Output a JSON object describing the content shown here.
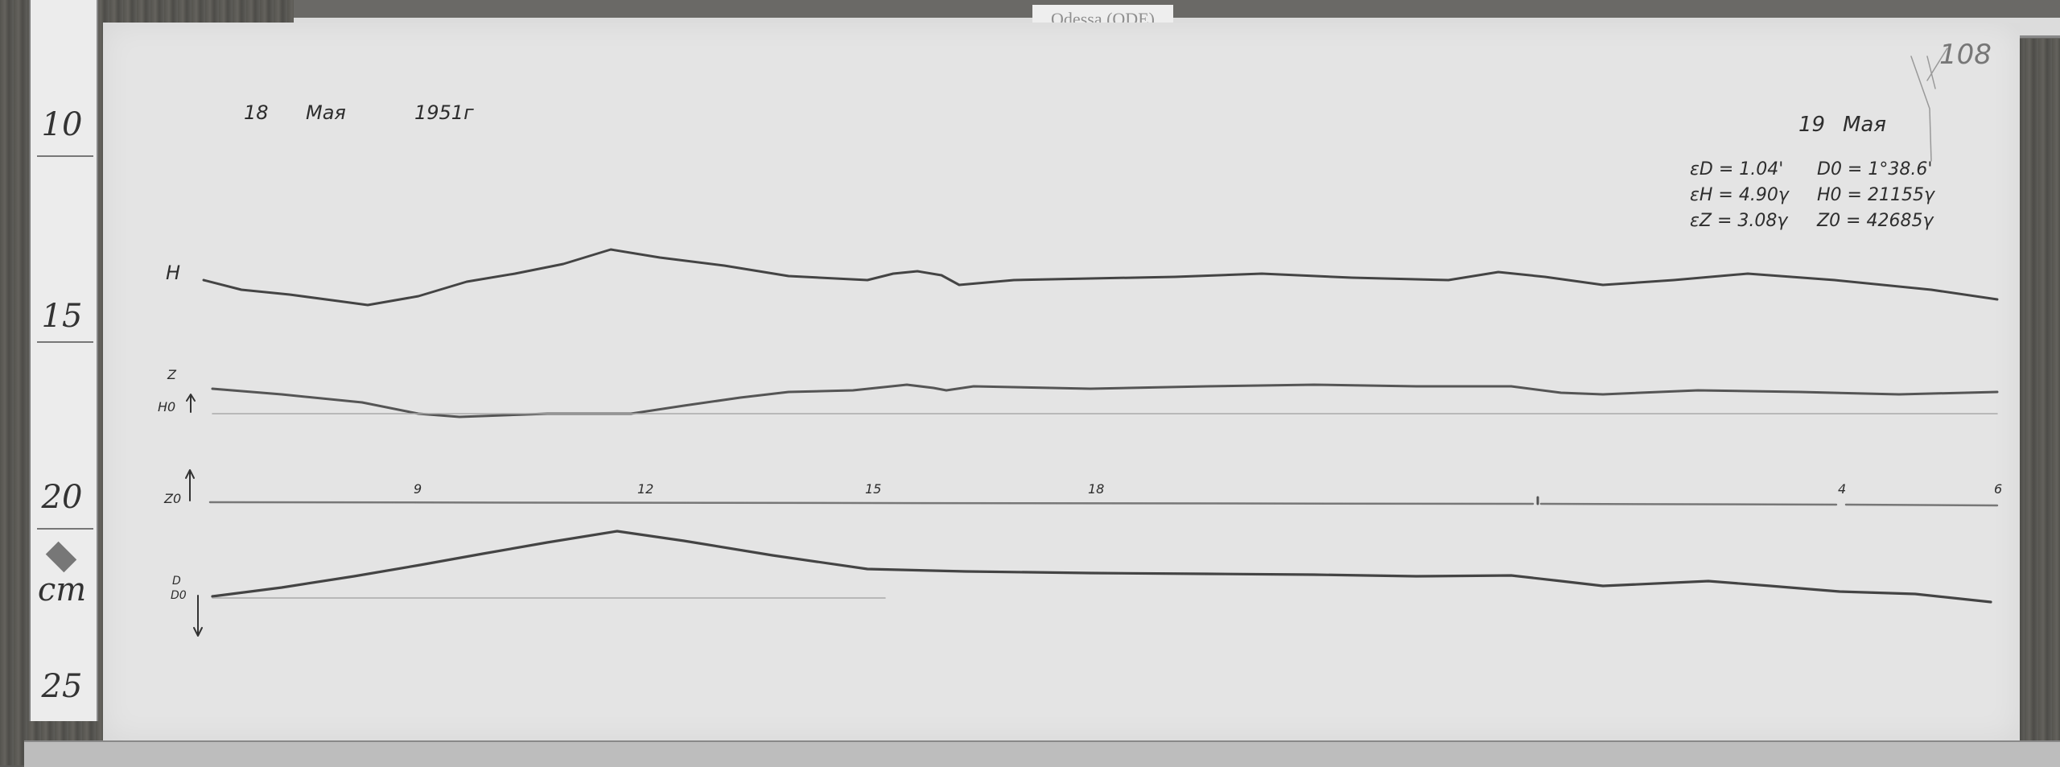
{
  "station_label": "Odessa (ODE)",
  "sheet_number": "108",
  "header": {
    "day": "18",
    "month": "Мая",
    "year": "1951г"
  },
  "second_date": {
    "day": "19",
    "month": "Мая"
  },
  "scale_values": [
    {
      "label": "εD = 1.04'"
    },
    {
      "label": "εH = 4.90γ"
    },
    {
      "label": "εZ = 3.08γ"
    }
  ],
  "base_values": [
    {
      "label": "D0 = 1°38.6'"
    },
    {
      "label": "H0 = 21155γ"
    },
    {
      "label": "Z0 = 42685γ"
    }
  ],
  "trace_labels": {
    "h": "H",
    "z": "Z",
    "h0": "H0",
    "z0": "Z0",
    "d": "D",
    "d0": "D0"
  },
  "time_ticks": [
    "9",
    "12",
    "15",
    "18",
    "4",
    "6"
  ],
  "ruler": {
    "marks": [
      "10",
      "15",
      "20",
      "25"
    ],
    "unit": "cm"
  },
  "colors": {
    "paper": "#e4e4e4",
    "ink": "#3a3a3a",
    "background": "#5c5b58"
  }
}
